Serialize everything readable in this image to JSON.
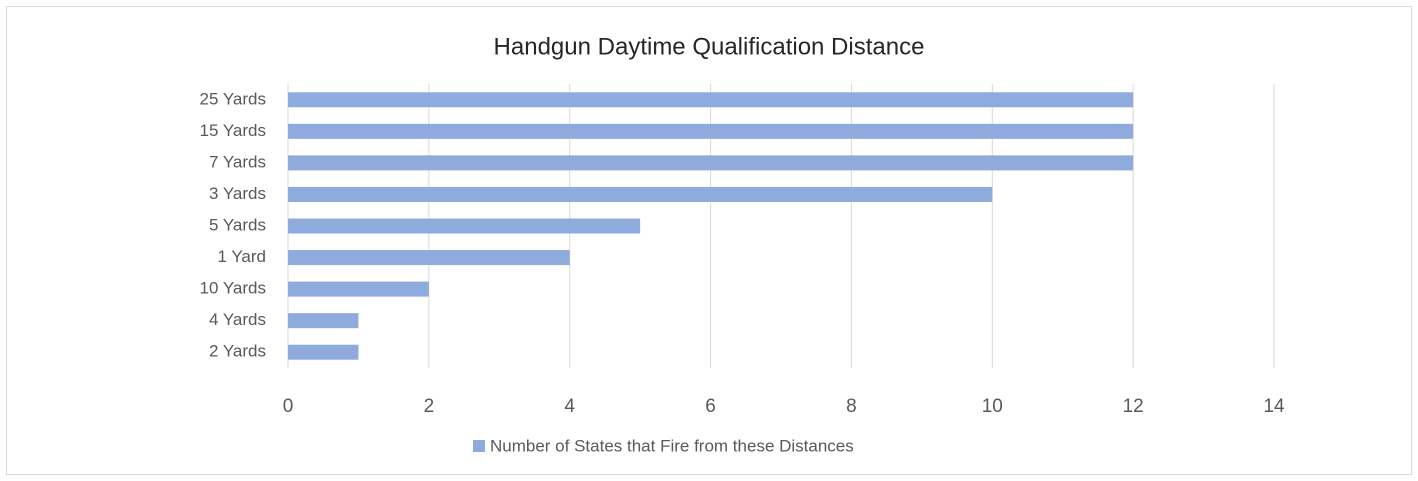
{
  "chart_data": {
    "type": "barh",
    "title": "Handgun Daytime Qualification Distance",
    "categories": [
      "25 Yards",
      "15 Yards",
      "7 Yards",
      "3 Yards",
      "5 Yards",
      "1 Yard",
      "10 Yards",
      "4 Yards",
      "2 Yards"
    ],
    "series": [
      {
        "name": "Number of States that Fire from these Distances",
        "color": "#8faadc",
        "values": [
          12,
          12,
          12,
          10,
          5,
          4,
          2,
          1,
          1
        ]
      }
    ],
    "xlim": [
      0,
      14
    ],
    "xticks": [
      0,
      2,
      4,
      6,
      8,
      10,
      12,
      14
    ],
    "grid": true,
    "legend": "bottom"
  }
}
